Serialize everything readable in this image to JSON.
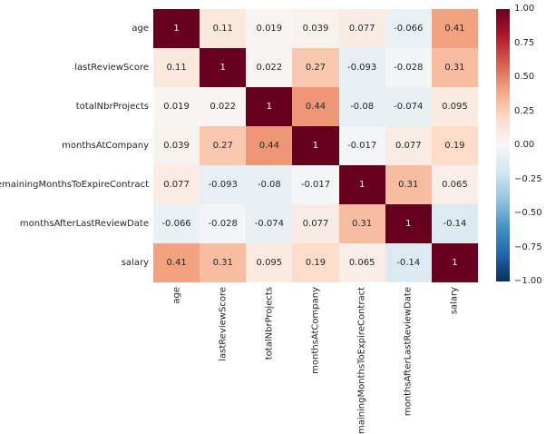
{
  "chart_data": {
    "type": "heatmap",
    "title": "",
    "xlabel": "",
    "ylabel": "",
    "categories": [
      "age",
      "lastReviewScore",
      "totalNbrProjects",
      "monthsAtCompany",
      "remainingMonthsToExpireContract",
      "monthsAfterLastReviewDate",
      "salary"
    ],
    "matrix": [
      [
        1,
        0.11,
        0.019,
        0.039,
        0.077,
        -0.066,
        0.41
      ],
      [
        0.11,
        1,
        0.022,
        0.27,
        -0.093,
        -0.028,
        0.31
      ],
      [
        0.019,
        0.022,
        1,
        0.44,
        -0.08,
        -0.074,
        0.095
      ],
      [
        0.039,
        0.27,
        0.44,
        1,
        -0.017,
        0.077,
        0.19
      ],
      [
        0.077,
        -0.093,
        -0.08,
        -0.017,
        1,
        0.31,
        0.065
      ],
      [
        -0.066,
        -0.028,
        -0.074,
        0.077,
        0.31,
        1,
        -0.14
      ],
      [
        0.41,
        0.31,
        0.095,
        0.19,
        0.065,
        -0.14,
        1
      ]
    ],
    "annotations": [
      [
        "1",
        "0.11",
        "0.019",
        "0.039",
        "0.077",
        "-0.066",
        "0.41"
      ],
      [
        "0.11",
        "1",
        "0.022",
        "0.27",
        "-0.093",
        "-0.028",
        "0.31"
      ],
      [
        "0.019",
        "0.022",
        "1",
        "0.44",
        "-0.08",
        "-0.074",
        "0.095"
      ],
      [
        "0.039",
        "0.27",
        "0.44",
        "1",
        "-0.017",
        "0.077",
        "0.19"
      ],
      [
        "0.077",
        "-0.093",
        "-0.08",
        "-0.017",
        "1",
        "0.31",
        "0.065"
      ],
      [
        "-0.066",
        "-0.028",
        "-0.074",
        "0.077",
        "0.31",
        "1",
        "-0.14"
      ],
      [
        "0.41",
        "0.31",
        "0.095",
        "0.19",
        "0.065",
        "-0.14",
        "1"
      ]
    ],
    "vmin": -1,
    "vmax": 1,
    "colormap": "RdBu_r",
    "colormap_stops": [
      "#053061",
      "#2166ac",
      "#4393c3",
      "#92c5de",
      "#d1e5f0",
      "#f7f7f7",
      "#fddbc7",
      "#f4a582",
      "#d6604d",
      "#b2182b",
      "#67001f"
    ],
    "colorbar_ticks": [
      "1.00",
      "0.75",
      "0.50",
      "0.25",
      "0.00",
      "−0.25",
      "−0.50",
      "−0.75",
      "−1.00"
    ],
    "legend_position": "right",
    "grid": false,
    "annotation_text_color": "#262626",
    "annotation_text_color_dark_cells": "#ffffff"
  }
}
